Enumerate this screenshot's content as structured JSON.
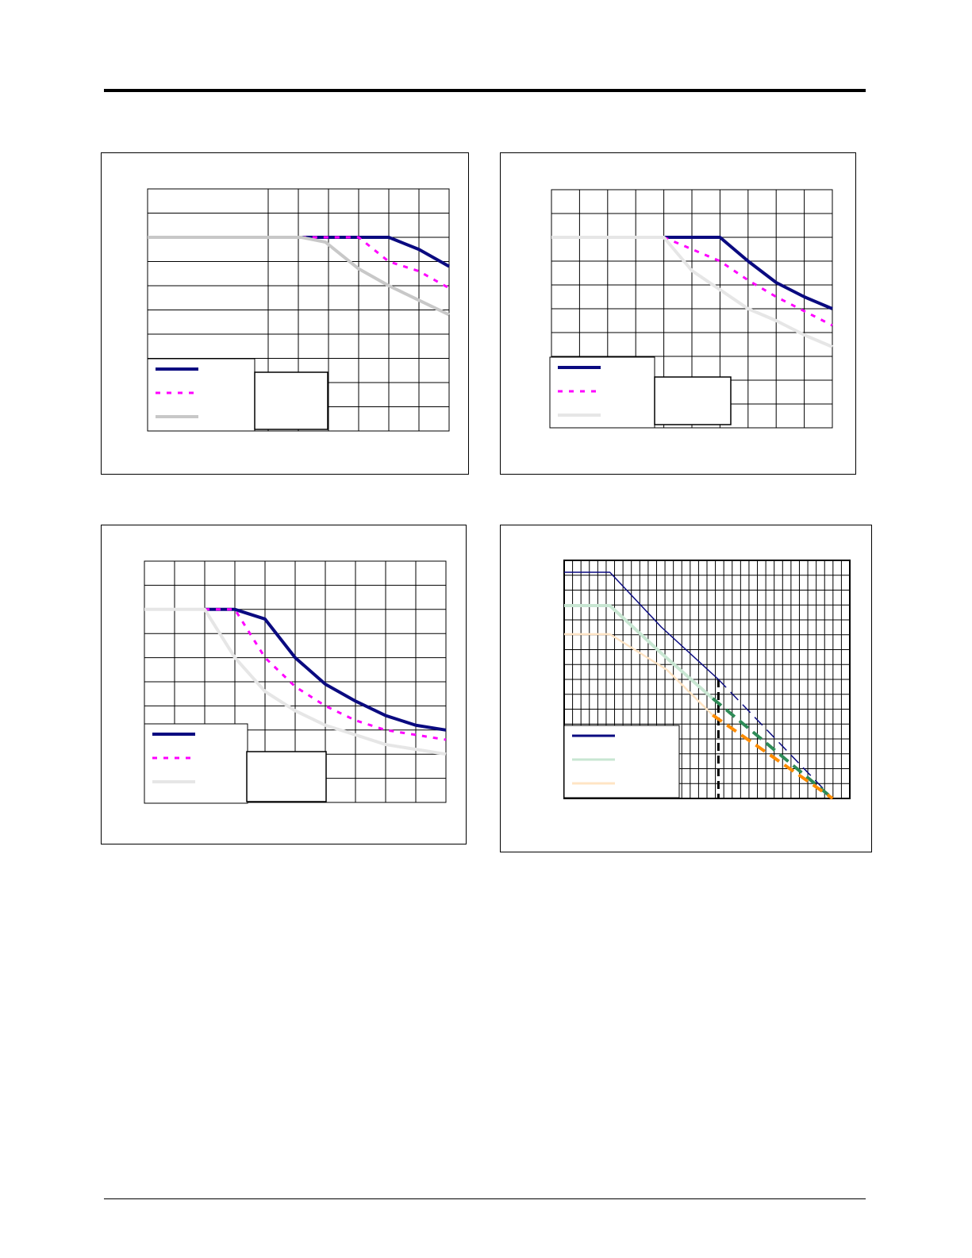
{
  "page": {},
  "chart_data": [
    {
      "type": "line",
      "xlim": [
        0,
        10
      ],
      "ylim": [
        0,
        10
      ],
      "grid": true,
      "grid_x": 10,
      "grid_y": 10,
      "skip_v_top": [
        1,
        2,
        3
      ],
      "skip_v_rows": 7,
      "series": [
        {
          "color": "#0a0a80",
          "style": "solid",
          "width": 4,
          "x": [
            0,
            5.1,
            8,
            9,
            10
          ],
          "y": [
            8,
            8,
            8,
            7.5,
            6.8
          ]
        },
        {
          "color": "#ff00ff",
          "style": "dotted",
          "width": 3,
          "x": [
            5.1,
            7,
            8,
            9,
            10
          ],
          "y": [
            8,
            8,
            7,
            6.6,
            5.9
          ]
        },
        {
          "color": "#c8c8c8",
          "style": "solid",
          "width": 4,
          "x": [
            0,
            5.1,
            5.9,
            7,
            8,
            9,
            10
          ],
          "y": [
            8,
            8,
            7.8,
            6.7,
            6,
            5.4,
            4.8
          ]
        }
      ],
      "legend_placement": "bottom-left",
      "legend": [
        "",
        "",
        ""
      ],
      "inset_box": true
    },
    {
      "type": "line",
      "xlim": [
        0,
        10
      ],
      "ylim": [
        0,
        10
      ],
      "grid": true,
      "grid_x": 10,
      "grid_y": 10,
      "series": [
        {
          "color": "#0a0a80",
          "style": "solid",
          "width": 4,
          "x": [
            0,
            4,
            6,
            7,
            8,
            9,
            10
          ],
          "y": [
            8,
            8,
            8,
            7,
            6.1,
            5.5,
            5
          ]
        },
        {
          "color": "#ff00ff",
          "style": "dotted",
          "width": 3,
          "x": [
            4,
            6,
            7,
            8,
            9,
            10
          ],
          "y": [
            8,
            7,
            6.2,
            5.5,
            4.9,
            4.3
          ]
        },
        {
          "color": "#e6e6e6",
          "style": "solid",
          "width": 4,
          "x": [
            0,
            4,
            5,
            6,
            7,
            8,
            9,
            10
          ],
          "y": [
            8,
            8,
            6.6,
            5.8,
            5,
            4.5,
            3.9,
            3.4
          ]
        }
      ],
      "legend_placement": "bottom-left",
      "legend": [
        "",
        "",
        ""
      ],
      "inset_box": true
    },
    {
      "type": "line",
      "xlim": [
        0,
        10
      ],
      "ylim": [
        0,
        10
      ],
      "grid": true,
      "grid_x": 10,
      "grid_y": 10,
      "series": [
        {
          "color": "#0a0a80",
          "style": "solid",
          "width": 4,
          "x": [
            2,
            3,
            4,
            5,
            6,
            7,
            8,
            9,
            10
          ],
          "y": [
            8,
            8,
            7.6,
            6,
            4.9,
            4.2,
            3.6,
            3.2,
            3
          ]
        },
        {
          "color": "#ff00ff",
          "style": "dotted",
          "width": 3,
          "x": [
            2,
            3,
            4,
            5,
            6,
            7,
            8,
            9,
            10
          ],
          "y": [
            8,
            8,
            6,
            4.8,
            4,
            3.4,
            3,
            2.8,
            2.6
          ]
        },
        {
          "color": "#e6e6e6",
          "style": "solid",
          "width": 4,
          "x": [
            0,
            2,
            3,
            4,
            5,
            6,
            7,
            8,
            9,
            10
          ],
          "y": [
            8,
            8,
            6,
            4.6,
            3.8,
            3.2,
            2.8,
            2.4,
            2.2,
            2
          ]
        }
      ],
      "legend_placement": "bottom-left",
      "legend": [
        "",
        "",
        ""
      ],
      "inset_box": true
    },
    {
      "type": "line",
      "xlim": [
        0,
        10
      ],
      "ylim": [
        0,
        10
      ],
      "grid": true,
      "grid_x": 34,
      "grid_y": 16,
      "threshold_x": 5.4,
      "series": [
        {
          "color": "#0a0a80",
          "style": "solid",
          "width": 1.5,
          "x": [
            0,
            1.6,
            3.4,
            5.4
          ],
          "y": [
            9.5,
            9.5,
            7.2,
            5
          ]
        },
        {
          "color": "#0a0a80",
          "style": "dashed",
          "width": 1.5,
          "x": [
            5.4,
            9.4
          ],
          "y": [
            5,
            0
          ]
        },
        {
          "color": "#c8e6d2",
          "style": "solid",
          "width": 4,
          "x": [
            0,
            1.6,
            3.4,
            5.2
          ],
          "y": [
            8.1,
            8.1,
            6.1,
            4.2
          ]
        },
        {
          "color": "#2e8b57",
          "style": "dashed",
          "width": 4,
          "x": [
            5.2,
            9.4
          ],
          "y": [
            4.2,
            0
          ]
        },
        {
          "color": "#ffe4c4",
          "style": "solid",
          "width": 2.5,
          "x": [
            0,
            1.6,
            3.6,
            5.2
          ],
          "y": [
            6.9,
            6.9,
            5.4,
            3.5
          ]
        },
        {
          "color": "#ff8c00",
          "style": "dashed",
          "width": 4,
          "x": [
            5.2,
            9.4
          ],
          "y": [
            3.5,
            0
          ]
        }
      ],
      "legend_placement": "bottom-left",
      "legend": [
        "",
        "",
        ""
      ],
      "inset_box": false
    }
  ]
}
